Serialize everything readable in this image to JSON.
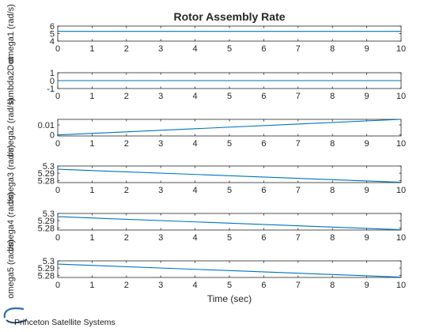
{
  "figure": {
    "title": "Rotor Assembly Rate",
    "xlabel": "Time (sec)",
    "logo_text": "Princeton Satellite Systems"
  },
  "chart_data": [
    {
      "type": "line",
      "ylabel": "omega1 (rad/s)",
      "xlim": [
        0,
        10
      ],
      "ylim": [
        4,
        6
      ],
      "yticks": [
        4,
        5,
        6
      ],
      "ytick_labels": [
        "4",
        "5",
        "6"
      ],
      "xticks": [
        0,
        1,
        2,
        3,
        4,
        5,
        6,
        7,
        8,
        9,
        10
      ],
      "x": [
        0,
        10
      ],
      "y": [
        5.3,
        5.3
      ],
      "grid": false
    },
    {
      "type": "line",
      "ylabel": "lambda2Dot",
      "xlim": [
        0,
        10
      ],
      "ylim": [
        -1,
        1
      ],
      "yticks": [
        -1,
        0,
        1
      ],
      "ytick_labels": [
        "-1",
        "0",
        "1"
      ],
      "xticks": [
        0,
        1,
        2,
        3,
        4,
        5,
        6,
        7,
        8,
        9,
        10
      ],
      "x": [
        0,
        10
      ],
      "y": [
        0,
        0
      ],
      "grid": false
    },
    {
      "type": "line",
      "ylabel": "omega2 (rad/s)",
      "xlim": [
        0,
        10
      ],
      "ylim": [
        -0.001,
        0.0155
      ],
      "yticks": [
        0,
        0.01
      ],
      "ytick_labels": [
        "0",
        "0.01"
      ],
      "xticks": [
        0,
        1,
        2,
        3,
        4,
        5,
        6,
        7,
        8,
        9,
        10
      ],
      "x": [
        0,
        10
      ],
      "y": [
        0,
        0.0155
      ],
      "grid": false
    },
    {
      "type": "line",
      "ylabel": "omega3 (rad/s)",
      "xlim": [
        0,
        10
      ],
      "ylim": [
        5.277,
        5.3
      ],
      "yticks": [
        5.28,
        5.29,
        5.3
      ],
      "ytick_labels": [
        "5.28",
        "5.29",
        "5.3"
      ],
      "xticks": [
        0,
        1,
        2,
        3,
        4,
        5,
        6,
        7,
        8,
        9,
        10
      ],
      "x": [
        0,
        10
      ],
      "y": [
        5.2955,
        5.2775
      ],
      "grid": false
    },
    {
      "type": "line",
      "ylabel": "omega4 (rad/s)",
      "xlim": [
        0,
        10
      ],
      "ylim": [
        5.277,
        5.3
      ],
      "yticks": [
        5.28,
        5.29,
        5.3
      ],
      "ytick_labels": [
        "5.28",
        "5.29",
        "5.3"
      ],
      "xticks": [
        0,
        1,
        2,
        3,
        4,
        5,
        6,
        7,
        8,
        9,
        10
      ],
      "x": [
        0,
        10
      ],
      "y": [
        5.2955,
        5.2775
      ],
      "grid": false
    },
    {
      "type": "line",
      "ylabel": "omega5 (rad/s)",
      "xlim": [
        0,
        10
      ],
      "ylim": [
        5.277,
        5.3
      ],
      "yticks": [
        5.28,
        5.29,
        5.3
      ],
      "ytick_labels": [
        "5.28",
        "5.29",
        "5.3"
      ],
      "xticks": [
        0,
        1,
        2,
        3,
        4,
        5,
        6,
        7,
        8,
        9,
        10
      ],
      "x": [
        0,
        10
      ],
      "y": [
        5.2955,
        5.2775
      ],
      "grid": false
    }
  ],
  "colors": {
    "line": "#0072BD",
    "axes": "#262626",
    "logo_orbit": "#2f6db5",
    "logo_dark": "#1f3f73"
  }
}
